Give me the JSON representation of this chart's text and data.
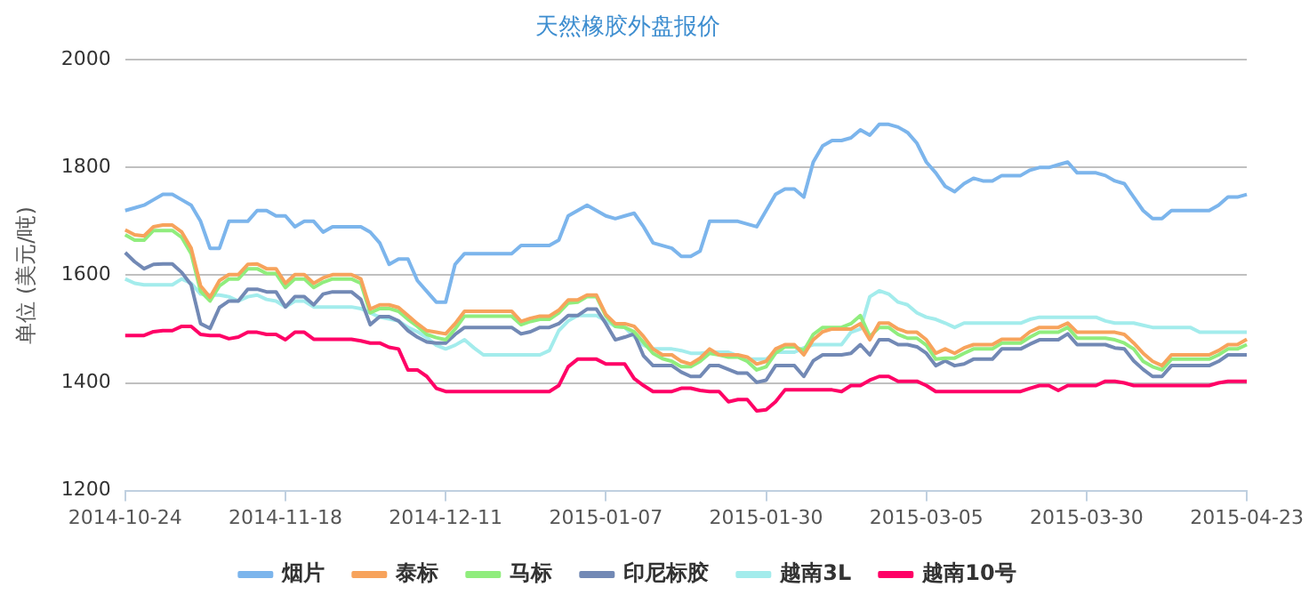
{
  "chart_data": {
    "type": "line",
    "title": "天然橡胶外盘报价",
    "ylabel": "单位 (美元/吨)",
    "categories": [
      "2014-10-24",
      null,
      null,
      null,
      null,
      null,
      null,
      null,
      null,
      null,
      null,
      null,
      null,
      null,
      null,
      null,
      null,
      "2014-11-18",
      null,
      null,
      null,
      null,
      null,
      null,
      null,
      null,
      null,
      null,
      null,
      null,
      null,
      null,
      null,
      null,
      "2014-12-11",
      null,
      null,
      null,
      null,
      null,
      null,
      null,
      null,
      null,
      null,
      null,
      null,
      null,
      null,
      null,
      null,
      "2015-01-07",
      null,
      null,
      null,
      null,
      null,
      null,
      null,
      null,
      null,
      null,
      null,
      null,
      null,
      null,
      null,
      null,
      "2015-01-30",
      null,
      null,
      null,
      null,
      null,
      null,
      null,
      null,
      null,
      null,
      null,
      null,
      null,
      null,
      null,
      null,
      "2015-03-05",
      null,
      null,
      null,
      null,
      null,
      null,
      null,
      null,
      null,
      null,
      null,
      null,
      null,
      null,
      null,
      null,
      "2015-03-30",
      null,
      null,
      null,
      null,
      null,
      null,
      null,
      null,
      null,
      null,
      null,
      null,
      null,
      null,
      null,
      null,
      "2015-04-23"
    ],
    "ylim": [
      1200,
      2000
    ],
    "yticks": [
      1200,
      1400,
      1600,
      1800,
      2000
    ],
    "grid": "y",
    "legend": "bottom",
    "marker": "none",
    "line_style": "solid",
    "series": [
      {
        "name": "烟片",
        "color": "#7cb5ec",
        "values": [
          1720,
          1725,
          1730,
          1740,
          1750,
          1750,
          1740,
          1730,
          1700,
          1650,
          1650,
          1700,
          1700,
          1700,
          1720,
          1720,
          1710,
          1710,
          1690,
          1700,
          1700,
          1680,
          1690,
          1690,
          1690,
          1690,
          1680,
          1660,
          1620,
          1630,
          1630,
          1590,
          1570,
          1550,
          1550,
          1620,
          1640,
          1640,
          1640,
          1640,
          1640,
          1640,
          1655,
          1655,
          1655,
          1655,
          1665,
          1710,
          1720,
          1730,
          1720,
          1710,
          1705,
          1710,
          1715,
          1690,
          1660,
          1655,
          1650,
          1635,
          1635,
          1645,
          1700,
          1700,
          1700,
          1700,
          1695,
          1690,
          1720,
          1750,
          1760,
          1760,
          1745,
          1810,
          1840,
          1850,
          1850,
          1855,
          1870,
          1860,
          1880,
          1880,
          1875,
          1865,
          1845,
          1810,
          1790,
          1765,
          1755,
          1770,
          1780,
          1775,
          1775,
          1785,
          1785,
          1785,
          1795,
          1800,
          1800,
          1805,
          1810,
          1790,
          1790,
          1790,
          1785,
          1775,
          1770,
          1745,
          1720,
          1705,
          1705,
          1720,
          1720,
          1720,
          1720,
          1720,
          1730,
          1745,
          1745,
          1750
        ]
      },
      {
        "name": "泰标",
        "color": "#f7a35c",
        "values": [
          1684,
          1675,
          1673,
          1690,
          1693,
          1693,
          1680,
          1650,
          1580,
          1559,
          1590,
          1601,
          1601,
          1620,
          1621,
          1612,
          1612,
          1585,
          1601,
          1601,
          1585,
          1595,
          1601,
          1601,
          1601,
          1593,
          1537,
          1545,
          1545,
          1540,
          1525,
          1510,
          1497,
          1494,
          1491,
          1510,
          1533,
          1533,
          1533,
          1533,
          1533,
          1533,
          1514,
          1520,
          1524,
          1524,
          1535,
          1554,
          1554,
          1563,
          1563,
          1527,
          1510,
          1510,
          1505,
          1486,
          1463,
          1452,
          1452,
          1440,
          1435,
          1446,
          1463,
          1452,
          1452,
          1452,
          1448,
          1435,
          1440,
          1463,
          1471,
          1471,
          1452,
          1480,
          1495,
          1500,
          1500,
          1500,
          1510,
          1480,
          1511,
          1511,
          1500,
          1494,
          1494,
          1480,
          1455,
          1463,
          1455,
          1465,
          1471,
          1471,
          1471,
          1481,
          1481,
          1481,
          1495,
          1503,
          1503,
          1503,
          1511,
          1494,
          1494,
          1494,
          1494,
          1494,
          1490,
          1474,
          1455,
          1440,
          1432,
          1452,
          1452,
          1452,
          1452,
          1452,
          1460,
          1471,
          1471,
          1481
        ]
      },
      {
        "name": "马标",
        "color": "#90ed7d",
        "values": [
          1675,
          1665,
          1665,
          1683,
          1683,
          1683,
          1670,
          1640,
          1570,
          1552,
          1580,
          1593,
          1593,
          1612,
          1612,
          1603,
          1603,
          1577,
          1593,
          1593,
          1577,
          1587,
          1593,
          1593,
          1593,
          1585,
          1530,
          1538,
          1538,
          1533,
          1518,
          1505,
          1490,
          1484,
          1480,
          1500,
          1524,
          1524,
          1524,
          1524,
          1524,
          1524,
          1508,
          1514,
          1518,
          1518,
          1530,
          1548,
          1550,
          1560,
          1560,
          1524,
          1505,
          1503,
          1495,
          1475,
          1455,
          1445,
          1440,
          1430,
          1430,
          1440,
          1455,
          1452,
          1448,
          1448,
          1440,
          1424,
          1430,
          1455,
          1467,
          1467,
          1460,
          1490,
          1503,
          1503,
          1503,
          1510,
          1525,
          1486,
          1503,
          1503,
          1490,
          1483,
          1483,
          1470,
          1444,
          1446,
          1446,
          1455,
          1463,
          1463,
          1463,
          1474,
          1474,
          1474,
          1485,
          1494,
          1494,
          1494,
          1503,
          1483,
          1483,
          1483,
          1483,
          1480,
          1474,
          1463,
          1440,
          1430,
          1424,
          1444,
          1444,
          1444,
          1444,
          1444,
          1452,
          1463,
          1463,
          1471
        ]
      },
      {
        "name": "印尼标胶",
        "color": "#7289b5",
        "values": [
          1642,
          1625,
          1612,
          1620,
          1621,
          1621,
          1605,
          1582,
          1510,
          1501,
          1540,
          1552,
          1552,
          1574,
          1574,
          1569,
          1569,
          1541,
          1560,
          1560,
          1545,
          1565,
          1569,
          1569,
          1569,
          1555,
          1508,
          1523,
          1523,
          1515,
          1497,
          1485,
          1476,
          1474,
          1474,
          1490,
          1503,
          1503,
          1503,
          1503,
          1503,
          1503,
          1491,
          1495,
          1503,
          1503,
          1510,
          1525,
          1525,
          1537,
          1537,
          1510,
          1480,
          1485,
          1491,
          1450,
          1432,
          1432,
          1432,
          1420,
          1412,
          1412,
          1432,
          1432,
          1425,
          1418,
          1418,
          1401,
          1405,
          1432,
          1432,
          1432,
          1412,
          1441,
          1452,
          1452,
          1452,
          1455,
          1471,
          1452,
          1480,
          1480,
          1471,
          1471,
          1467,
          1455,
          1432,
          1441,
          1432,
          1435,
          1444,
          1444,
          1444,
          1463,
          1463,
          1463,
          1472,
          1480,
          1480,
          1480,
          1491,
          1471,
          1471,
          1471,
          1471,
          1465,
          1463,
          1441,
          1425,
          1412,
          1412,
          1432,
          1432,
          1432,
          1432,
          1432,
          1440,
          1452,
          1452,
          1452
        ]
      },
      {
        "name": "越南3L",
        "color": "#a3ecec",
        "values": [
          1593,
          1585,
          1582,
          1582,
          1582,
          1582,
          1593,
          1585,
          1565,
          1563,
          1563,
          1560,
          1552,
          1560,
          1563,
          1555,
          1552,
          1541,
          1552,
          1552,
          1541,
          1541,
          1541,
          1541,
          1541,
          1538,
          1530,
          1522,
          1519,
          1515,
          1503,
          1495,
          1484,
          1470,
          1463,
          1470,
          1480,
          1465,
          1452,
          1452,
          1452,
          1452,
          1452,
          1452,
          1452,
          1460,
          1497,
          1515,
          1525,
          1525,
          1525,
          1515,
          1505,
          1503,
          1486,
          1470,
          1463,
          1463,
          1463,
          1460,
          1455,
          1455,
          1457,
          1457,
          1457,
          1450,
          1444,
          1444,
          1444,
          1457,
          1457,
          1457,
          1465,
          1471,
          1471,
          1471,
          1471,
          1494,
          1500,
          1560,
          1571,
          1565,
          1550,
          1545,
          1530,
          1522,
          1518,
          1511,
          1503,
          1511,
          1511,
          1511,
          1511,
          1511,
          1511,
          1511,
          1518,
          1522,
          1522,
          1522,
          1522,
          1522,
          1522,
          1522,
          1515,
          1511,
          1511,
          1511,
          1507,
          1503,
          1503,
          1503,
          1503,
          1503,
          1494,
          1494,
          1494,
          1494,
          1494,
          1494
        ]
      },
      {
        "name": "越南10号",
        "color": "#ff0066",
        "values": [
          1488,
          1488,
          1488,
          1495,
          1497,
          1497,
          1505,
          1505,
          1490,
          1488,
          1488,
          1482,
          1485,
          1494,
          1494,
          1490,
          1490,
          1480,
          1494,
          1494,
          1481,
          1481,
          1481,
          1481,
          1481,
          1478,
          1474,
          1474,
          1466,
          1463,
          1424,
          1424,
          1412,
          1390,
          1384,
          1384,
          1384,
          1384,
          1384,
          1384,
          1384,
          1384,
          1384,
          1384,
          1384,
          1384,
          1395,
          1430,
          1444,
          1444,
          1444,
          1435,
          1435,
          1435,
          1408,
          1395,
          1384,
          1384,
          1384,
          1390,
          1390,
          1386,
          1384,
          1384,
          1365,
          1369,
          1369,
          1348,
          1350,
          1365,
          1387,
          1387,
          1387,
          1387,
          1387,
          1387,
          1384,
          1395,
          1395,
          1405,
          1412,
          1412,
          1403,
          1403,
          1403,
          1395,
          1384,
          1384,
          1384,
          1384,
          1384,
          1384,
          1384,
          1384,
          1384,
          1384,
          1390,
          1395,
          1395,
          1386,
          1395,
          1395,
          1395,
          1395,
          1403,
          1403,
          1400,
          1395,
          1395,
          1395,
          1395,
          1395,
          1395,
          1395,
          1395,
          1395,
          1400,
          1403,
          1403,
          1403
        ]
      }
    ]
  }
}
